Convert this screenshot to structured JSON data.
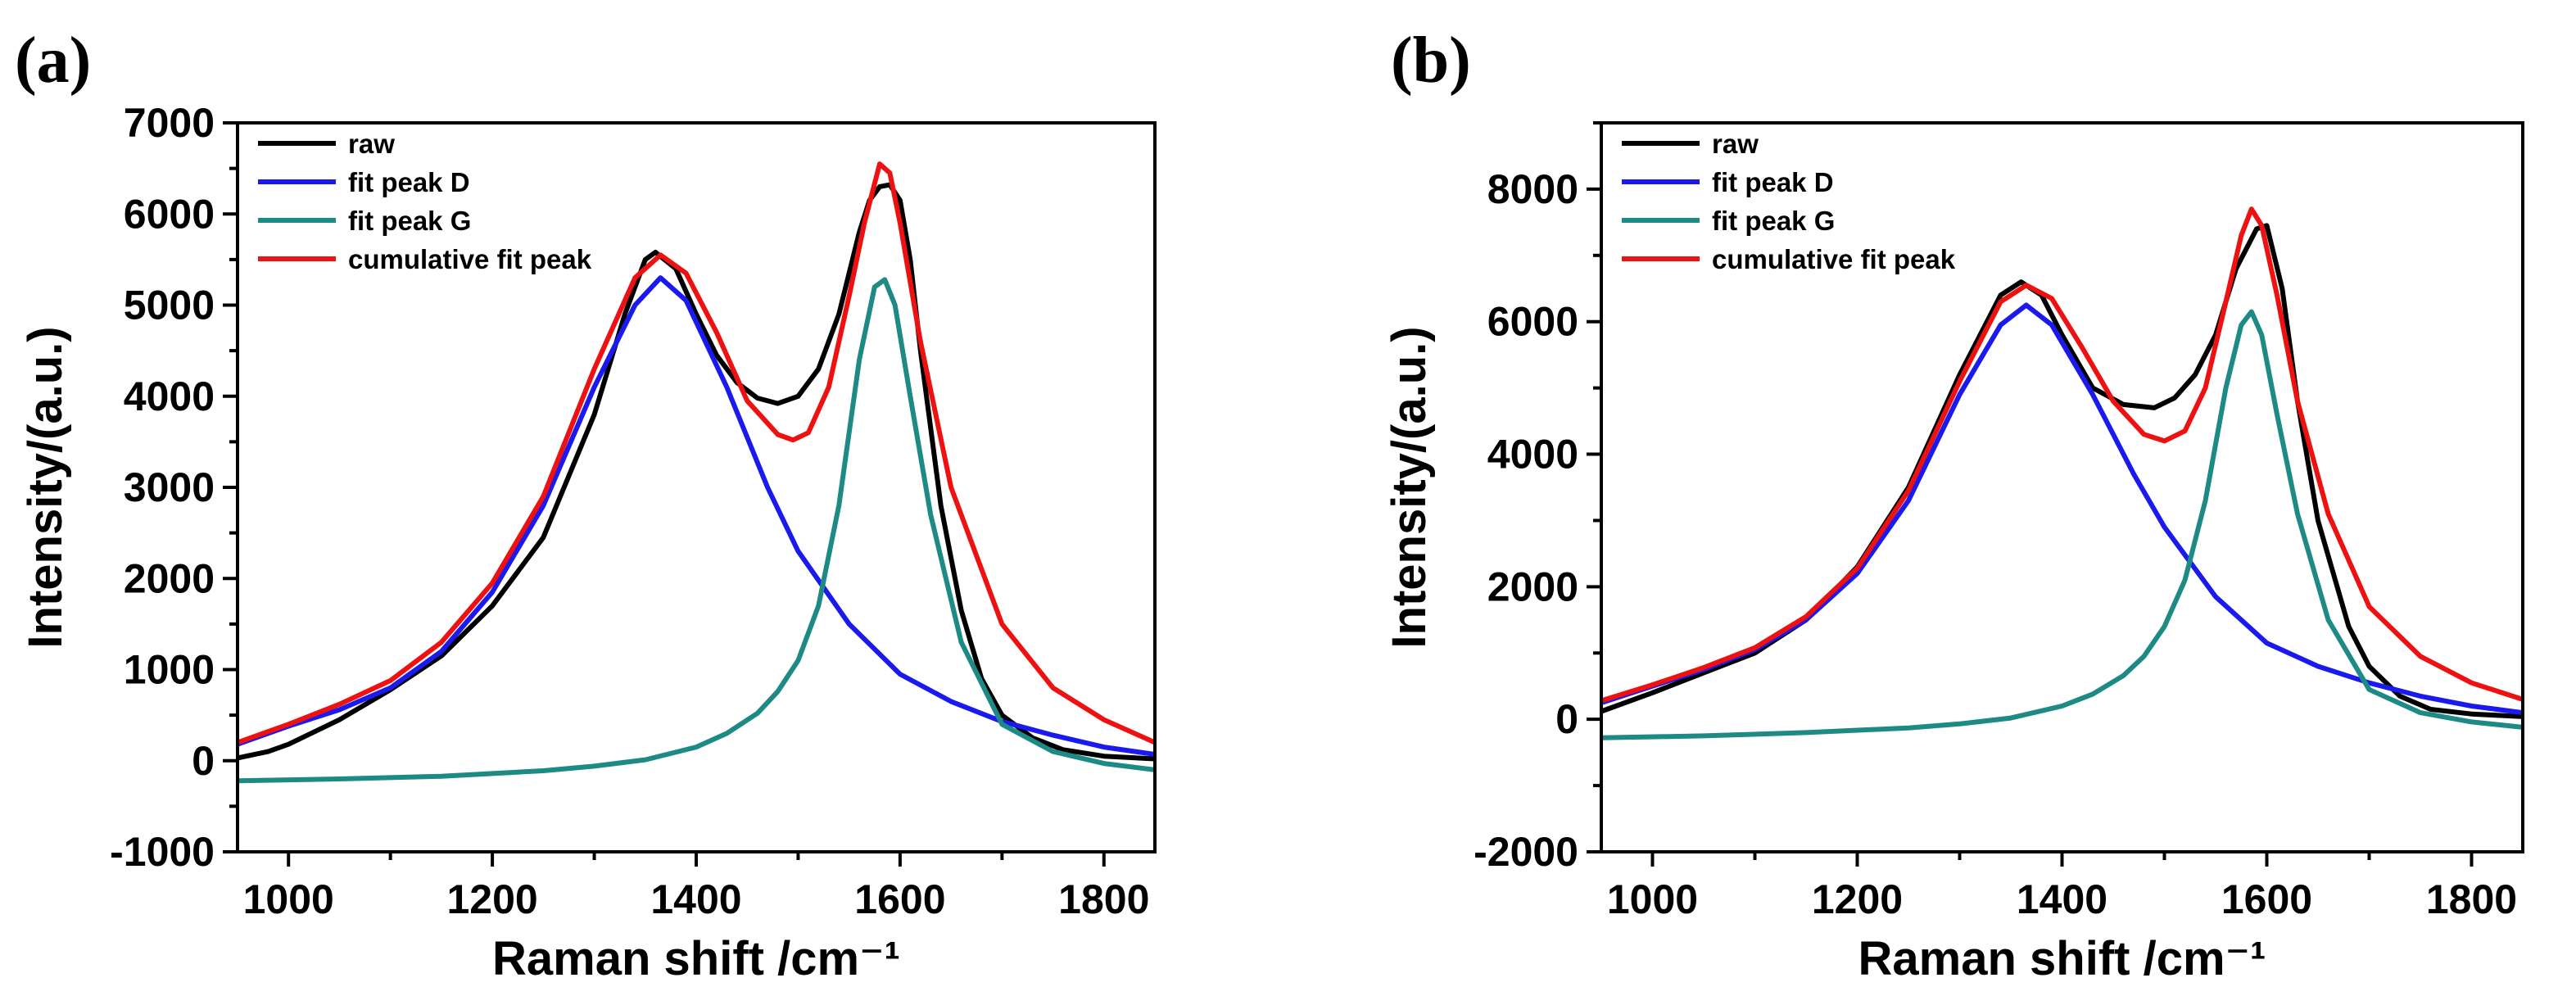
{
  "chart_data": [
    {
      "type": "line",
      "panel": "(a)",
      "xlabel": "Raman shift /cm⁻¹",
      "ylabel": "Intensity/(a.u.)",
      "xlim": [
        950,
        1850
      ],
      "ylim": [
        -1000,
        7000
      ],
      "xticks": [
        1000,
        1200,
        1400,
        1600,
        1800
      ],
      "xtick_labels": [
        "1000",
        "1200",
        "1400",
        "1600",
        "1800"
      ],
      "yticks": [
        -1000,
        0,
        1000,
        2000,
        3000,
        4000,
        5000,
        6000,
        7000
      ],
      "ytick_labels": [
        "-1000",
        "0",
        "1000",
        "2000",
        "3000",
        "4000",
        "5000",
        "6000",
        "7000"
      ],
      "legend_position": "top-left",
      "series": [
        {
          "name": "raw",
          "color": "#000000",
          "x": [
            950,
            980,
            1000,
            1050,
            1100,
            1150,
            1200,
            1250,
            1300,
            1330,
            1350,
            1360,
            1380,
            1400,
            1420,
            1440,
            1460,
            1480,
            1500,
            1520,
            1540,
            1560,
            1570,
            1580,
            1590,
            1600,
            1610,
            1620,
            1640,
            1660,
            1680,
            1700,
            1730,
            1760,
            1800,
            1850
          ],
          "y": [
            30,
            100,
            180,
            450,
            780,
            1150,
            1700,
            2450,
            3800,
            4900,
            5500,
            5580,
            5400,
            4900,
            4450,
            4150,
            3980,
            3920,
            4000,
            4300,
            4900,
            5800,
            6150,
            6300,
            6320,
            6150,
            5500,
            4500,
            2800,
            1650,
            900,
            500,
            250,
            120,
            50,
            20
          ]
        },
        {
          "name": "fit peak D",
          "color": "#1a1aee",
          "x": [
            950,
            1000,
            1050,
            1100,
            1150,
            1200,
            1250,
            1300,
            1340,
            1365,
            1390,
            1430,
            1470,
            1500,
            1550,
            1600,
            1650,
            1700,
            1750,
            1800,
            1850
          ],
          "y": [
            180,
            380,
            560,
            800,
            1200,
            1850,
            2800,
            4100,
            5000,
            5300,
            5050,
            4100,
            3000,
            2300,
            1500,
            950,
            650,
            430,
            280,
            150,
            70
          ]
        },
        {
          "name": "fit peak G",
          "color": "#1d8a86",
          "x": [
            950,
            1050,
            1150,
            1250,
            1300,
            1350,
            1400,
            1430,
            1460,
            1480,
            1500,
            1520,
            1540,
            1560,
            1575,
            1585,
            1595,
            1610,
            1630,
            1660,
            1700,
            1750,
            1800,
            1850
          ],
          "y": [
            -220,
            -200,
            -170,
            -110,
            -60,
            10,
            150,
            300,
            520,
            760,
            1100,
            1700,
            2800,
            4400,
            5200,
            5280,
            5000,
            4000,
            2700,
            1300,
            400,
            100,
            -30,
            -100
          ]
        },
        {
          "name": "cumulative fit peak",
          "color": "#ee1111",
          "x": [
            950,
            1000,
            1050,
            1100,
            1150,
            1200,
            1250,
            1300,
            1340,
            1365,
            1390,
            1420,
            1450,
            1480,
            1495,
            1510,
            1530,
            1550,
            1565,
            1580,
            1590,
            1600,
            1620,
            1650,
            1700,
            1750,
            1800,
            1850
          ],
          "y": [
            200,
            400,
            620,
            880,
            1300,
            1950,
            2900,
            4300,
            5300,
            5550,
            5350,
            4700,
            3950,
            3580,
            3520,
            3600,
            4100,
            5100,
            5900,
            6550,
            6450,
            5900,
            4600,
            3000,
            1500,
            800,
            450,
            200
          ]
        }
      ]
    },
    {
      "type": "line",
      "panel": "(b)",
      "xlabel": "Raman shift /cm⁻¹",
      "ylabel": "Intensity/(a.u.)",
      "xlim": [
        950,
        1850
      ],
      "ylim": [
        -2000,
        9000
      ],
      "xticks": [
        1000,
        1200,
        1400,
        1600,
        1800
      ],
      "xtick_labels": [
        "1000",
        "1200",
        "1400",
        "1600",
        "1800"
      ],
      "yticks": [
        -2000,
        0,
        2000,
        4000,
        6000,
        8000
      ],
      "ytick_labels": [
        "-2000",
        "0",
        "2000",
        "4000",
        "6000",
        "8000"
      ],
      "legend_position": "top-left",
      "series": [
        {
          "name": "raw",
          "color": "#000000",
          "x": [
            950,
            1000,
            1050,
            1100,
            1150,
            1200,
            1250,
            1300,
            1340,
            1360,
            1380,
            1400,
            1430,
            1460,
            1490,
            1510,
            1530,
            1550,
            1570,
            1590,
            1600,
            1615,
            1630,
            1650,
            1680,
            1700,
            1730,
            1760,
            1800,
            1850
          ],
          "y": [
            120,
            400,
            700,
            1000,
            1500,
            2300,
            3500,
            5200,
            6400,
            6600,
            6400,
            5800,
            5000,
            4750,
            4700,
            4850,
            5200,
            5800,
            6800,
            7400,
            7450,
            6500,
            4800,
            3000,
            1400,
            800,
            350,
            150,
            80,
            40
          ]
        },
        {
          "name": "fit peak D",
          "color": "#1a1aee",
          "x": [
            950,
            1000,
            1050,
            1100,
            1150,
            1200,
            1250,
            1300,
            1340,
            1365,
            1390,
            1430,
            1470,
            1500,
            1550,
            1600,
            1650,
            1700,
            1750,
            1800,
            1850
          ],
          "y": [
            250,
            500,
            750,
            1050,
            1500,
            2200,
            3300,
            4900,
            5950,
            6250,
            5950,
            4900,
            3700,
            2900,
            1850,
            1150,
            800,
            550,
            350,
            200,
            100
          ]
        },
        {
          "name": "fit peak G",
          "color": "#1d8a86",
          "x": [
            950,
            1050,
            1150,
            1250,
            1300,
            1350,
            1400,
            1430,
            1460,
            1480,
            1500,
            1520,
            1540,
            1560,
            1575,
            1585,
            1595,
            1610,
            1630,
            1660,
            1700,
            1750,
            1800,
            1850
          ],
          "y": [
            -280,
            -250,
            -200,
            -130,
            -70,
            20,
            200,
            380,
            660,
            950,
            1400,
            2100,
            3300,
            5000,
            5950,
            6150,
            5800,
            4600,
            3100,
            1500,
            450,
            100,
            -40,
            -120
          ]
        },
        {
          "name": "cumulative fit peak",
          "color": "#ee1111",
          "x": [
            950,
            1000,
            1050,
            1100,
            1150,
            1200,
            1250,
            1300,
            1340,
            1365,
            1390,
            1420,
            1450,
            1480,
            1500,
            1520,
            1540,
            1560,
            1575,
            1585,
            1595,
            1610,
            1630,
            1660,
            1700,
            1750,
            1800,
            1850
          ],
          "y": [
            280,
            520,
            780,
            1080,
            1550,
            2280,
            3450,
            5100,
            6300,
            6550,
            6350,
            5600,
            4800,
            4300,
            4200,
            4350,
            5000,
            6300,
            7300,
            7700,
            7450,
            6400,
            4800,
            3100,
            1700,
            950,
            550,
            300
          ]
        }
      ]
    }
  ]
}
